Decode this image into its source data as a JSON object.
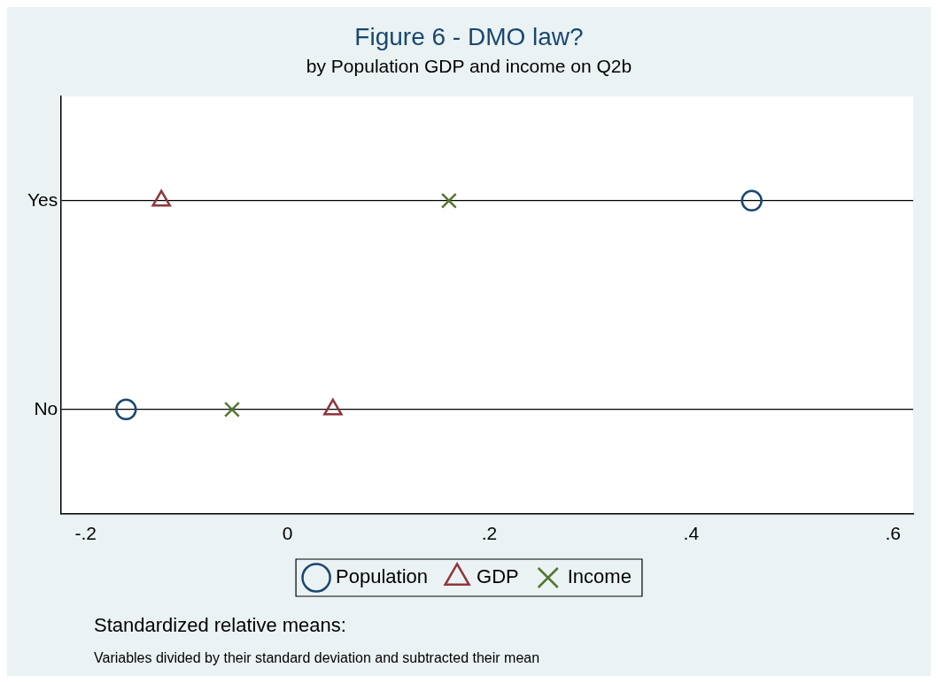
{
  "chart_data": {
    "type": "scatter",
    "orientation": "horizontal",
    "title": "Figure 6 - DMO law?",
    "subtitle": "by Population GDP and income on Q2b",
    "categories": [
      "Yes",
      "No"
    ],
    "series": [
      {
        "name": "Population",
        "color": "#1a476f",
        "marker": "circle",
        "values": [
          0.46,
          -0.16
        ]
      },
      {
        "name": "GDP",
        "color": "#90353b",
        "marker": "triangle",
        "values": [
          -0.125,
          0.045
        ]
      },
      {
        "name": "Income",
        "color": "#55752f",
        "marker": "cross",
        "values": [
          0.16,
          -0.055
        ]
      }
    ],
    "xlim": [
      -0.225,
      0.62
    ],
    "xticks": [
      {
        "value": -0.2,
        "label": "-.2"
      },
      {
        "value": 0,
        "label": "0"
      },
      {
        "value": 0.2,
        "label": ".2"
      },
      {
        "value": 0.4,
        "label": ".4"
      },
      {
        "value": 0.6,
        "label": ".6"
      }
    ],
    "grid": "y",
    "legend": "bottom",
    "annotations": [
      "Standardized relative means:",
      "Variables divided by their standard deviation and subtracted their mean"
    ]
  }
}
